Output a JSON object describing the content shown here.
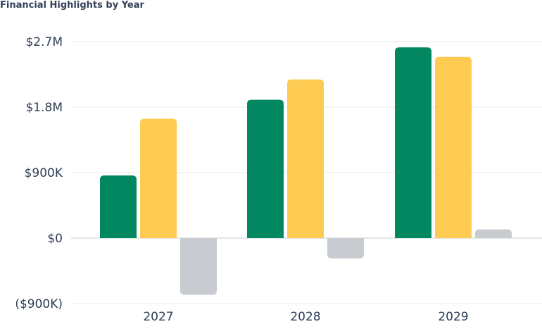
{
  "chart_data": {
    "type": "bar",
    "title": "Financial Highlights by Year",
    "xlabel": "",
    "ylabel": "",
    "categories": [
      "2027",
      "2028",
      "2029"
    ],
    "series": [
      {
        "color": "#038760",
        "values": [
          860000,
          1900000,
          2620000
        ]
      },
      {
        "color": "#fecb52",
        "values": [
          1640000,
          2180000,
          2490000
        ]
      },
      {
        "color": "#c8cbcf",
        "values": [
          -780000,
          -280000,
          120000
        ]
      }
    ],
    "ylim": [
      -900000,
      2700000
    ],
    "yticks": [
      {
        "value": 2700000,
        "label": "$2.7M"
      },
      {
        "value": 1800000,
        "label": "$1.8M"
      },
      {
        "value": 900000,
        "label": "$900K"
      },
      {
        "value": 0,
        "label": "$0"
      },
      {
        "value": -900000,
        "label": "($900K)"
      }
    ],
    "grid": true,
    "legend": "none"
  }
}
